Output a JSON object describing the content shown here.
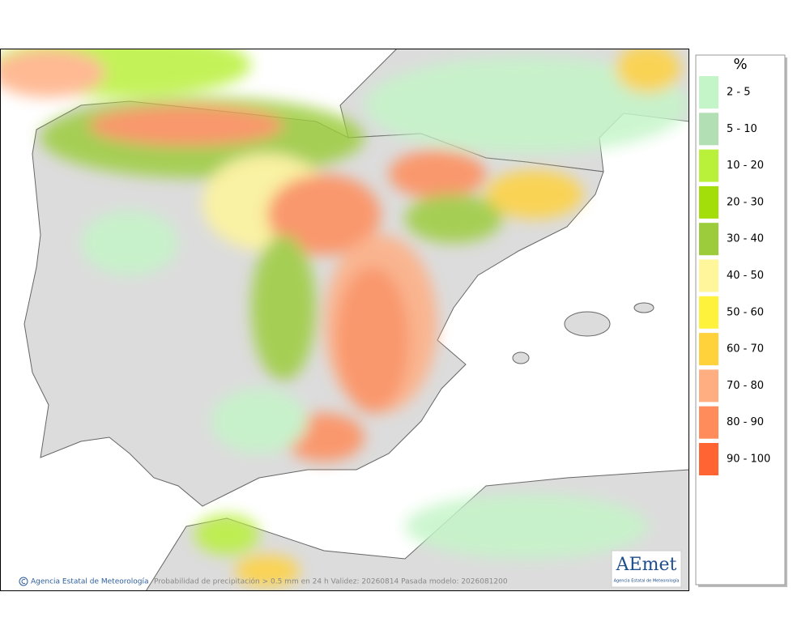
{
  "legend": {
    "title": "%",
    "items": [
      {
        "label": "2 - 5",
        "color": "#c4f5c8"
      },
      {
        "label": "5 - 10",
        "color": "#b2dfb4"
      },
      {
        "label": "10 - 20",
        "color": "#b9f03a"
      },
      {
        "label": "20 - 30",
        "color": "#a4de0a"
      },
      {
        "label": "30 - 40",
        "color": "#9ccc3c"
      },
      {
        "label": "40 - 50",
        "color": "#fff59a"
      },
      {
        "label": "50 - 60",
        "color": "#fff23c"
      },
      {
        "label": "60 - 70",
        "color": "#ffd23c"
      },
      {
        "label": "70 - 80",
        "color": "#ffae82"
      },
      {
        "label": "80 - 90",
        "color": "#ff8c5a"
      },
      {
        "label": "90 - 100",
        "color": "#ff6432"
      }
    ]
  },
  "footer": {
    "credit": "Agencia Estatal de Meteorología",
    "caption": "Probabilidad de precipitación > 0.5 mm en 24 h Validez: 20260814 Pasada modelo: 2026081200"
  },
  "logo": {
    "name": "AEmet",
    "subtitle": "Agencia Estatal de Meteorología"
  }
}
